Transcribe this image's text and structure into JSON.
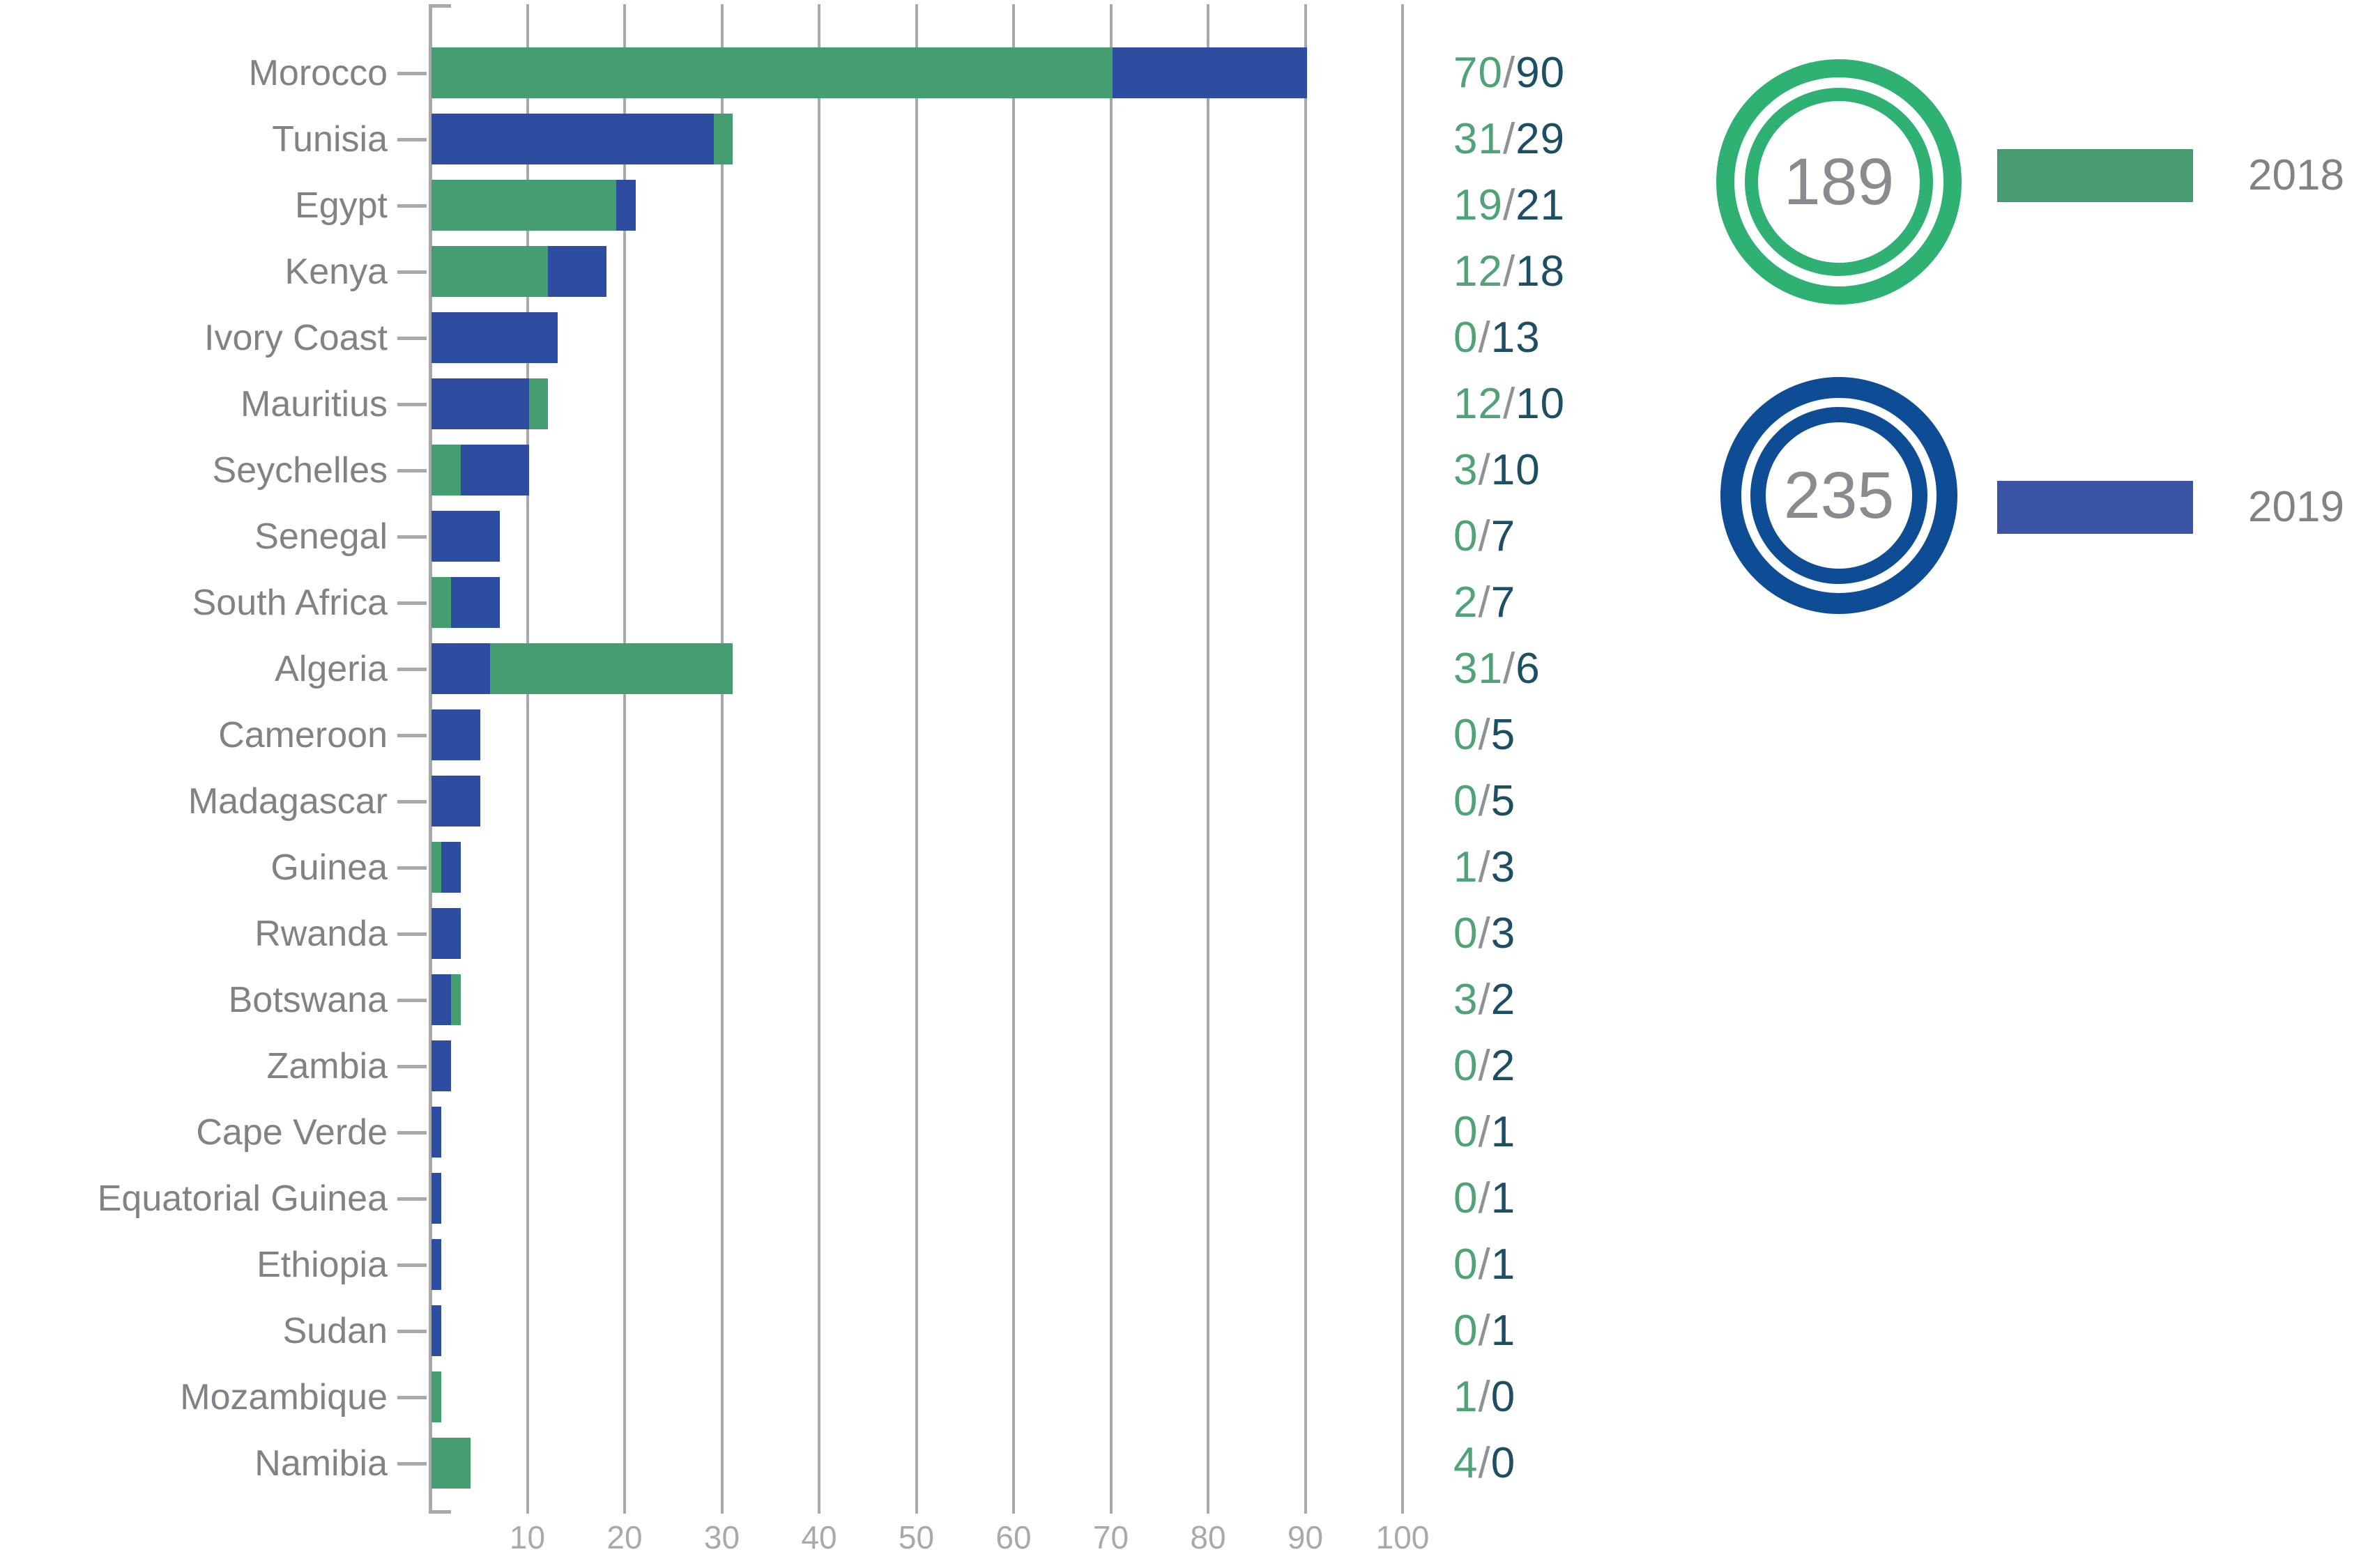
{
  "chart_data": {
    "type": "bar",
    "orientation": "horizontal",
    "title": "",
    "xlabel": "",
    "ylabel": "",
    "xlim": [
      0,
      100
    ],
    "x_ticks": [
      10,
      20,
      30,
      40,
      50,
      60,
      70,
      80,
      90,
      100
    ],
    "grid": true,
    "legend_position": "right",
    "bar_overlap_note": "bars for both years start at 0 and overlap; smaller value drawn in front",
    "categories": [
      "Morocco",
      "Tunisia",
      "Egypt",
      "Kenya",
      "Ivory Coast",
      "Mauritius",
      "Seychelles",
      "Senegal",
      "South Africa",
      "Algeria",
      "Cameroon",
      "Madagascar",
      "Guinea",
      "Rwanda",
      "Botswana",
      "Zambia",
      "Cape Verde",
      "Equatorial Guinea",
      "Ethiopia",
      "Sudan",
      "Mozambique",
      "Namibia"
    ],
    "series": [
      {
        "name": "2018",
        "color": "#449e70",
        "total": 189,
        "values": [
          70,
          31,
          19,
          12,
          0,
          12,
          3,
          0,
          2,
          31,
          0,
          0,
          1,
          0,
          3,
          0,
          0,
          0,
          0,
          0,
          1,
          4
        ]
      },
      {
        "name": "2019",
        "color": "#2c4da0",
        "total": 235,
        "values": [
          90,
          29,
          21,
          18,
          13,
          10,
          10,
          7,
          7,
          6,
          5,
          5,
          3,
          3,
          2,
          2,
          1,
          1,
          1,
          1,
          0,
          0
        ]
      }
    ],
    "value_labels": [
      "70/90",
      "31/29",
      "19/21",
      "12/18",
      "0/13",
      "12/10",
      "3/10",
      "0/7",
      "2/7",
      "31/6",
      "0/5",
      "0/5",
      "1/3",
      "0/3",
      "3/2",
      "0/2",
      "0/1",
      "0/1",
      "0/1",
      "0/1",
      "1/0",
      "4/0"
    ]
  },
  "legend": {
    "total_2018": "189",
    "total_2019": "235",
    "year_2018": "2018",
    "year_2019": "2019"
  },
  "colors": {
    "bar_2018": "#449e70",
    "bar_2019": "#2c4da0",
    "swatch_2018": "#489a70",
    "swatch_2019": "#3b54a6",
    "donut_2018": "#2eb173",
    "donut_2019": "#0e4d96",
    "value_text_2018": "#4fa377",
    "value_text_2019": "#1d4e63",
    "value_slash": "#8f9193",
    "axis": "#a7a9ac",
    "country_label": "#808285",
    "donut_number": "#8a8b8e"
  }
}
